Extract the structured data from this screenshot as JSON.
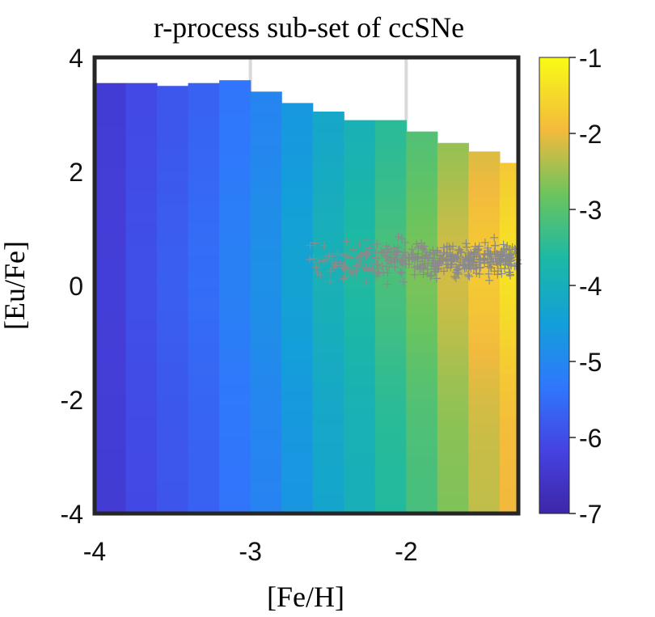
{
  "chart_data": {
    "type": "heatmap",
    "title": "r-process sub-set of ccSNe",
    "xlabel": "[Fe/H]",
    "ylabel": "[Eu/Fe]",
    "xlim": [
      -4.0,
      -1.28
    ],
    "ylim": [
      -4,
      4
    ],
    "xticks": [
      "-4",
      "-3",
      "-2"
    ],
    "yticks": [
      "-4",
      "-2",
      "0",
      "2",
      "4"
    ],
    "colorbar": {
      "range": [
        -7,
        -1
      ],
      "ticks": [
        "-7",
        "-6",
        "-5",
        "-4",
        "-3",
        "-2",
        "-1"
      ],
      "colormap": "parula"
    },
    "heatmap": {
      "x_bin_edges": [
        -4.0,
        -3.8,
        -3.6,
        -3.4,
        -3.2,
        -3.0,
        -2.8,
        -2.6,
        -2.4,
        -2.2,
        -2.0,
        -1.8,
        -1.6,
        -1.4,
        -1.28
      ],
      "top_y": [
        3.55,
        3.55,
        3.5,
        3.55,
        3.6,
        3.4,
        3.2,
        3.05,
        2.9,
        2.9,
        2.7,
        2.5,
        2.35,
        2.15
      ],
      "columns": [
        {
          "x": -3.9,
          "value": -6.3
        },
        {
          "x": -3.7,
          "value": -6.0
        },
        {
          "x": -3.5,
          "value": -5.8
        },
        {
          "x": -3.3,
          "value": -5.6
        },
        {
          "x": -3.1,
          "value": -5.3
        },
        {
          "x": -2.9,
          "value": -5.0
        },
        {
          "x": -2.7,
          "value": -4.6
        },
        {
          "x": -2.5,
          "value": -4.2
        },
        {
          "x": -2.3,
          "value": -3.9
        },
        {
          "x": -2.1,
          "value": -3.5
        },
        {
          "x": -1.9,
          "value": -3.1
        },
        {
          "x": -1.7,
          "value": -2.6
        },
        {
          "x": -1.5,
          "value": -2.2
        },
        {
          "x": -1.35,
          "value": -1.9
        }
      ]
    },
    "scatter": {
      "marker": "+",
      "color": "#8a8a8a",
      "points_description": "observed stars concentrated around [Eu/Fe] 0 to 1 between [Fe/H] -2.6 and -1.3"
    },
    "grid": true
  }
}
